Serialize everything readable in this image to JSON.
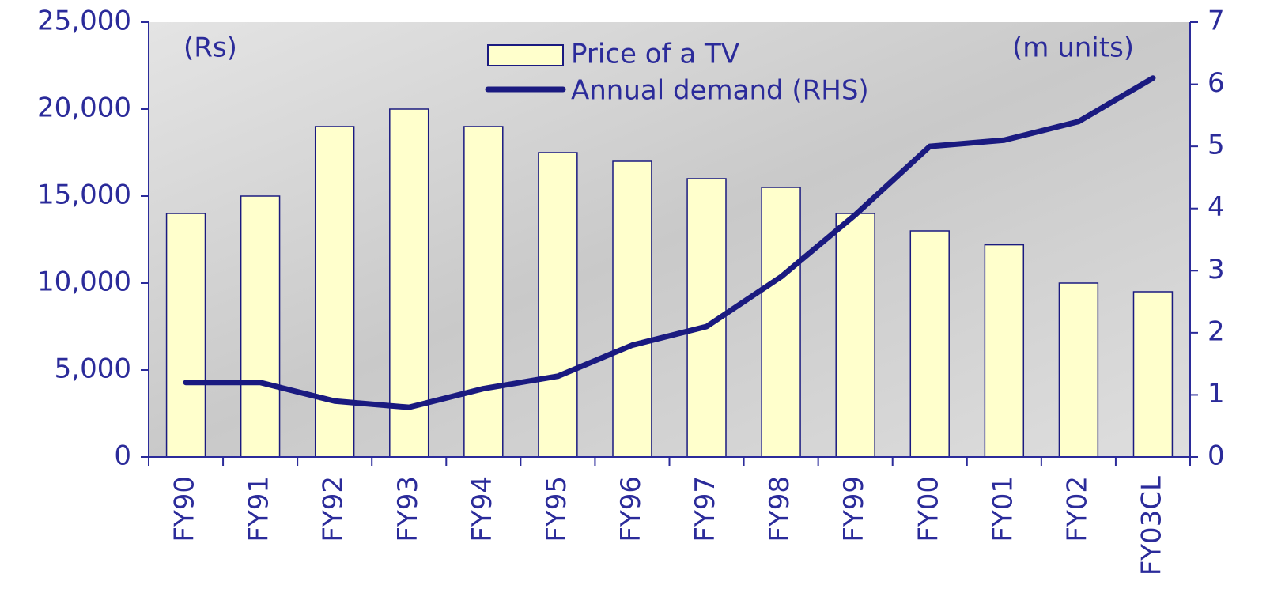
{
  "chart_data": {
    "type": "bar",
    "categories": [
      "FY90",
      "FY91",
      "FY92",
      "FY93",
      "FY94",
      "FY95",
      "FY96",
      "FY97",
      "FY98",
      "FY99",
      "FY00",
      "FY01",
      "FY02",
      "FY03CL"
    ],
    "series": [
      {
        "name": "Price of a TV",
        "type": "bar",
        "color": "#ffffcc",
        "values": [
          14000,
          15000,
          19000,
          20000,
          19000,
          17500,
          17000,
          16000,
          15500,
          14000,
          13000,
          12200,
          10000,
          9500
        ]
      },
      {
        "name": "Annual demand (RHS)",
        "type": "line",
        "axis": "y2",
        "color": "#1a1a80",
        "values": [
          1.2,
          1.2,
          0.9,
          0.8,
          1.1,
          1.3,
          1.8,
          2.1,
          2.9,
          3.9,
          5.0,
          5.1,
          5.4,
          6.1
        ]
      }
    ],
    "ylim": [
      0,
      25000
    ],
    "yticks": [
      0,
      {
        "value": 5000,
        "label": "5,000"
      },
      {
        "value": 10000,
        "label": "10,000"
      },
      {
        "value": 15000,
        "label": "15,000"
      },
      {
        "value": 20000,
        "label": "20,000"
      },
      {
        "value": 25000,
        "label": "25,000"
      }
    ],
    "y2lim": [
      0,
      7
    ],
    "y2ticks": [
      0,
      1,
      2,
      3,
      4,
      5,
      6,
      7
    ],
    "annotations": [
      "(Rs)",
      "(m units)"
    ],
    "grid": false
  }
}
